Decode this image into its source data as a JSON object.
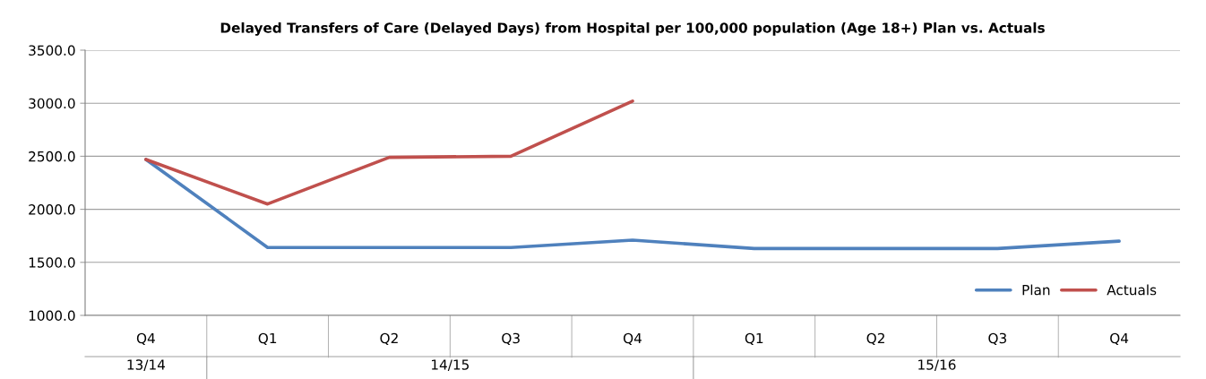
{
  "chart_data": {
    "type": "line",
    "title": "Delayed Transfers of Care (Delayed Days) from Hospital per 100,000 population (Age 18+) Plan vs. Actuals",
    "categories": [
      "Q4",
      "Q1",
      "Q2",
      "Q3",
      "Q4",
      "Q1",
      "Q2",
      "Q3",
      "Q4"
    ],
    "series": [
      {
        "name": "Plan",
        "color": "#4f81bd",
        "values": [
          2470,
          1640,
          1640,
          1640,
          1710,
          1630,
          1630,
          1630,
          1700
        ]
      },
      {
        "name": "Actuals",
        "color": "#c0504d",
        "values": [
          2470,
          2050,
          2490,
          2500,
          3020,
          null,
          null,
          null,
          null
        ]
      }
    ],
    "ylim": [
      1000,
      3500
    ],
    "yticks": [
      {
        "value": 1000,
        "label": "1000.0"
      },
      {
        "value": 1500,
        "label": "1500.0"
      },
      {
        "value": 2000,
        "label": "2000.0"
      },
      {
        "value": 2500,
        "label": "2500.0"
      },
      {
        "value": 3000,
        "label": "3000.0"
      },
      {
        "value": 3500,
        "label": "3500.0"
      }
    ],
    "annotations": [
      "13/14",
      "14/15",
      "15/16"
    ],
    "grid": "y",
    "legend": "bottom right",
    "marker": "none",
    "line_style": "solid"
  }
}
